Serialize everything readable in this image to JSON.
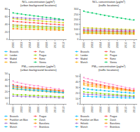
{
  "chart_data": [
    {
      "type": "scatter",
      "title": "NO₂ concentration (µg/m³) (urban background locations)",
      "x": [
        2000,
        2001,
        2002,
        2003,
        2004,
        2005,
        2006,
        2007,
        2008,
        2009,
        2010,
        2011,
        2012
      ],
      "xlim": [
        1999.2,
        2012.8
      ],
      "xticks": [
        2000,
        2002,
        2004,
        2006,
        2008,
        2010,
        2012
      ],
      "ylim": [
        0,
        80
      ],
      "yticks": [
        0,
        20,
        40,
        60,
        80
      ],
      "grid": false,
      "legend": "bottom",
      "marker": "circle",
      "series": [
        {
          "name": "Brussels",
          "color": "#00BFFF",
          "values": [
            38,
            37,
            37,
            36,
            36,
            35,
            35,
            34,
            34,
            33,
            33,
            33,
            32
          ],
          "trend": [
            37.68,
            32.01
          ]
        },
        {
          "name": "London",
          "color": "#CCCC00",
          "values": [
            55,
            54,
            53,
            52,
            51,
            50,
            49,
            48,
            47,
            47,
            46,
            45,
            44
          ],
          "trend": [
            54.71,
            43.9
          ]
        },
        {
          "name": "Madrid",
          "color": "#9966CC",
          "values": [
            58,
            57,
            57,
            56,
            55,
            55,
            54,
            54,
            53,
            53,
            52,
            51,
            51
          ],
          "trend": [
            57.8,
            50.81
          ]
        },
        {
          "name": "Munich",
          "color": "#FFAA00",
          "values": [
            38,
            37,
            37,
            36,
            35,
            35,
            34,
            34,
            33,
            32,
            32,
            31,
            31
          ],
          "trend": [
            37.82,
            30.64
          ]
        },
        {
          "name": "Paris",
          "color": "#FF4444",
          "values": [
            48,
            47,
            46,
            45,
            44,
            44,
            43,
            42,
            41,
            40,
            40,
            39,
            38
          ],
          "trend": [
            47.69,
            38.0
          ]
        },
        {
          "name": "Prague",
          "color": "#88DD00",
          "values": [
            33,
            33,
            32,
            32,
            31,
            31,
            30,
            30,
            29,
            29,
            28,
            28,
            27
          ],
          "trend": [
            33.23,
            27.23
          ]
        },
        {
          "name": "Rome",
          "color": "#FF8800",
          "values": [
            28,
            28,
            27,
            27,
            27,
            26,
            26,
            26,
            25,
            25,
            25,
            24,
            24
          ],
          "trend": [
            28.04,
            23.96
          ]
        },
        {
          "name": "Vienna",
          "color": "#00CC66",
          "values": [
            70,
            68,
            67,
            65,
            64,
            62,
            61,
            59,
            58,
            57,
            55,
            54,
            52
          ],
          "trend": [
            69.66,
            52.19
          ]
        }
      ]
    },
    {
      "type": "scatter",
      "title": "NO₂ concentration (µg/m³) (traffic locations)",
      "x": [
        2000,
        2001,
        2002,
        2003,
        2004,
        2005,
        2006,
        2007,
        2008,
        2009,
        2010,
        2011,
        2012
      ],
      "xlim": [
        1999.2,
        2012.8
      ],
      "xticks": [
        2000,
        2002,
        2004,
        2006,
        2008,
        2010,
        2012
      ],
      "ylim": [
        0,
        300
      ],
      "yticks": [
        0,
        50,
        100,
        150,
        200,
        250,
        300
      ],
      "grid": false,
      "legend": "bottom",
      "marker": "circle",
      "series": [
        {
          "name": "Brussels",
          "color": "#00BFFF",
          "values": [
            80,
            79,
            78,
            77,
            77,
            76,
            75,
            75,
            74,
            73,
            73,
            72,
            71
          ],
          "trend": [
            79.6,
            71.16
          ]
        },
        {
          "name": "London",
          "color": "#CCCC00",
          "values": [
            115,
            113,
            112,
            110,
            108,
            107,
            105,
            103,
            102,
            100,
            99,
            97,
            96
          ],
          "trend": [
            114.78,
            95.53
          ]
        },
        {
          "name": "Madrid",
          "color": "#9966CC",
          "values": [
            100,
            99,
            98,
            97,
            96,
            95,
            94,
            93,
            92,
            91,
            90,
            89,
            88
          ],
          "trend": [
            100,
            88
          ]
        },
        {
          "name": "Munich",
          "color": "#FFAA00",
          "values": [
            75,
            74,
            73,
            72,
            71,
            71,
            70,
            69,
            68,
            68,
            67,
            66,
            65
          ],
          "trend": [
            74.67,
            65.18
          ]
        },
        {
          "name": "Paris",
          "color": "#FF4444",
          "values": [
            88,
            87,
            86,
            85,
            84,
            83,
            82,
            81,
            80,
            79,
            78,
            77,
            76
          ],
          "trend": [
            88,
            76
          ]
        },
        {
          "name": "Prague",
          "color": "#88DD00",
          "values": [
            65,
            64,
            63,
            63,
            62,
            61,
            61,
            60,
            59,
            59,
            58,
            57,
            57
          ],
          "trend": [
            64.71,
            56.67
          ]
        },
        {
          "name": "Rome",
          "color": "#FF8800",
          "values": [
            60,
            59,
            59,
            58,
            57,
            57,
            56,
            55,
            55,
            54,
            53,
            53,
            52
          ],
          "trend": [
            59.96,
            52.04
          ]
        },
        {
          "name": "Vienna",
          "color": "#00CC66",
          "values": [
            280,
            270,
            262,
            254,
            246,
            238,
            230,
            223,
            216,
            210,
            204,
            198,
            193
          ],
          "trend": [
            276.16,
            189.07
          ]
        }
      ]
    },
    {
      "type": "scatter",
      "title": "PM₁₀ concentration (µg/m³) (urban background locations)",
      "x": [
        2000,
        2001,
        2002,
        2003,
        2004,
        2005,
        2006,
        2007,
        2008,
        2009,
        2010,
        2011,
        2012
      ],
      "xlim": [
        1999.2,
        2012.8
      ],
      "xticks": [
        2000,
        2002,
        2004,
        2006,
        2008,
        2010,
        2012
      ],
      "ylim": [
        0,
        50
      ],
      "yticks": [
        0,
        10,
        20,
        30,
        40,
        50
      ],
      "grid": false,
      "legend": "bottom",
      "marker": "circle",
      "series": [
        {
          "name": "Brussels",
          "color": "#00BFFF",
          "values": [
            30,
            28,
            27,
            26,
            25,
            24,
            24,
            23,
            22,
            21,
            21,
            20,
            19
          ],
          "trend": [
            28.86,
            18.84
          ]
        },
        {
          "name": "Frankfurt am Main",
          "color": "#FFAA00",
          "values": [
            25,
            24,
            24,
            23,
            22,
            22,
            21,
            21,
            20,
            20,
            19,
            19,
            18
          ],
          "trend": [
            24.71,
            18.05
          ]
        },
        {
          "name": "Helsinki",
          "color": "#9966CC",
          "values": [
            13,
            13,
            12,
            12,
            12,
            12,
            11,
            11,
            11,
            11,
            11,
            10,
            10
          ],
          "trend": [
            12.88,
            10.04
          ]
        },
        {
          "name": "Munich",
          "color": "#00BBEE",
          "values": [
            26,
            25,
            24,
            23,
            23,
            22,
            22,
            21,
            21,
            20,
            20,
            19,
            19
          ],
          "trend": [
            25.29,
            18.56
          ]
        },
        {
          "name": "Prague",
          "color": "#FF4444",
          "values": [
            32,
            30,
            29,
            28,
            27,
            26,
            26,
            25,
            24,
            23,
            23,
            22,
            21
          ],
          "trend": [
            30.86,
            20.84
          ]
        },
        {
          "name": "Zurich",
          "color": "#88DD00",
          "values": [
            16,
            15,
            15,
            15,
            14,
            14,
            14,
            13,
            13,
            13,
            12,
            12,
            12
          ],
          "trend": [
            15.67,
            11.71
          ]
        },
        {
          "name": "Barcelona",
          "color": "#FF8800",
          "values": [
            28,
            27,
            27,
            26,
            26,
            25,
            25,
            24,
            24,
            23,
            23,
            22,
            22
          ],
          "trend": [
            27.77,
            21.77
          ]
        },
        {
          "name": "Bratislava",
          "color": "#FF88CC",
          "values": [
            38,
            36,
            34,
            32,
            31,
            30,
            30,
            28,
            27,
            27,
            25,
            25,
            23
          ],
          "trend": [
            36.48,
            22.9
          ]
        }
      ]
    },
    {
      "type": "scatter",
      "title": "PM₁₀ concentration (µg/m³) (traffic locations)",
      "x": [
        2000,
        2001,
        2002,
        2003,
        2004,
        2005,
        2006,
        2007,
        2008,
        2009,
        2010,
        2011,
        2012
      ],
      "xlim": [
        1999.2,
        2012.8
      ],
      "xticks": [
        2000,
        2002,
        2004,
        2006,
        2008,
        2010,
        2012
      ],
      "ylim": [
        0,
        55
      ],
      "yticks": [
        0,
        10,
        20,
        30,
        40,
        50
      ],
      "grid": false,
      "legend": "bottom",
      "marker": "circle",
      "series": [
        {
          "name": "Brussels",
          "color": "#00BFFF",
          "values": [
            14,
            14,
            13,
            13,
            13,
            12,
            12,
            12,
            12,
            11,
            11,
            11,
            11
          ],
          "trend": [
            13.85,
            10.62
          ]
        },
        {
          "name": "Frankfurt am Main",
          "color": "#FFAA00",
          "values": [
            35,
            33,
            32,
            31,
            30,
            29,
            28,
            27,
            26,
            25,
            25,
            24,
            23
          ],
          "trend": [
            34.01,
            22.6
          ]
        },
        {
          "name": "Helsinki",
          "color": "#9966CC",
          "values": [
            18,
            17,
            17,
            17,
            16,
            16,
            15,
            15,
            15,
            14,
            14,
            14,
            13
          ],
          "trend": [
            17.74,
            13.19
          ]
        },
        {
          "name": "Munich",
          "color": "#00BBEE",
          "values": [
            28,
            27,
            26,
            25,
            25,
            24,
            23,
            23,
            22,
            21,
            21,
            20,
            20
          ],
          "trend": [
            27.48,
            19.44
          ]
        },
        {
          "name": "Prague",
          "color": "#FF4444",
          "values": [
            42,
            40,
            38,
            36,
            35,
            33,
            32,
            31,
            29,
            28,
            27,
            26,
            25
          ],
          "trend": [
            40.84,
            24.09
          ]
        },
        {
          "name": "Zurich",
          "color": "#88DD00",
          "values": [
            22,
            21,
            20,
            20,
            19,
            18,
            18,
            17,
            17,
            16,
            16,
            15,
            15
          ],
          "trend": [
            21.46,
            14.54
          ]
        },
        {
          "name": "Barcelona",
          "color": "#FF8800",
          "values": [
            38,
            36,
            35,
            34,
            33,
            31,
            30,
            29,
            28,
            27,
            26,
            25,
            24
          ],
          "trend": [
            37.32,
            23.6
          ]
        },
        {
          "name": "Bratislava",
          "color": "#FF88CC",
          "values": [
            48,
            46,
            44,
            42,
            40,
            38,
            36,
            35,
            33,
            32,
            30,
            29,
            28
          ],
          "trend": [
            47.15,
            26.85
          ]
        }
      ]
    }
  ]
}
